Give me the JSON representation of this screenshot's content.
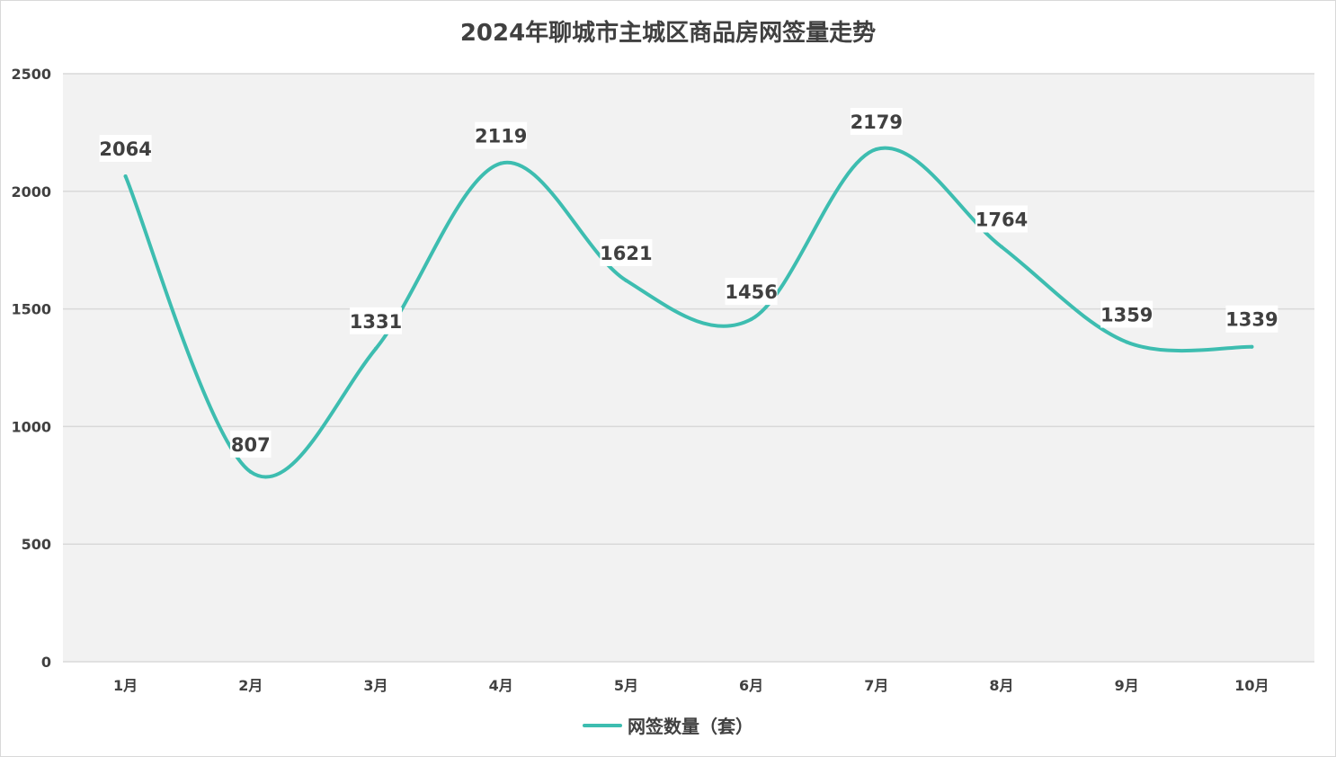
{
  "chart_data": {
    "type": "line",
    "title": "2024年聊城市主城区商品房网签量走势",
    "categories": [
      "1月",
      "2月",
      "3月",
      "4月",
      "5月",
      "6月",
      "7月",
      "8月",
      "9月",
      "10月"
    ],
    "series": [
      {
        "name": "网签数量（套）",
        "values": [
          2064,
          807,
          1331,
          2119,
          1621,
          1456,
          2179,
          1764,
          1359,
          1339
        ],
        "color": "#3dbdb0"
      }
    ],
    "ylim": [
      0,
      2500
    ],
    "yticks": [
      0,
      500,
      1000,
      1500,
      2000,
      2500
    ],
    "grid": true,
    "smooth": true,
    "legend_position": "bottom"
  }
}
